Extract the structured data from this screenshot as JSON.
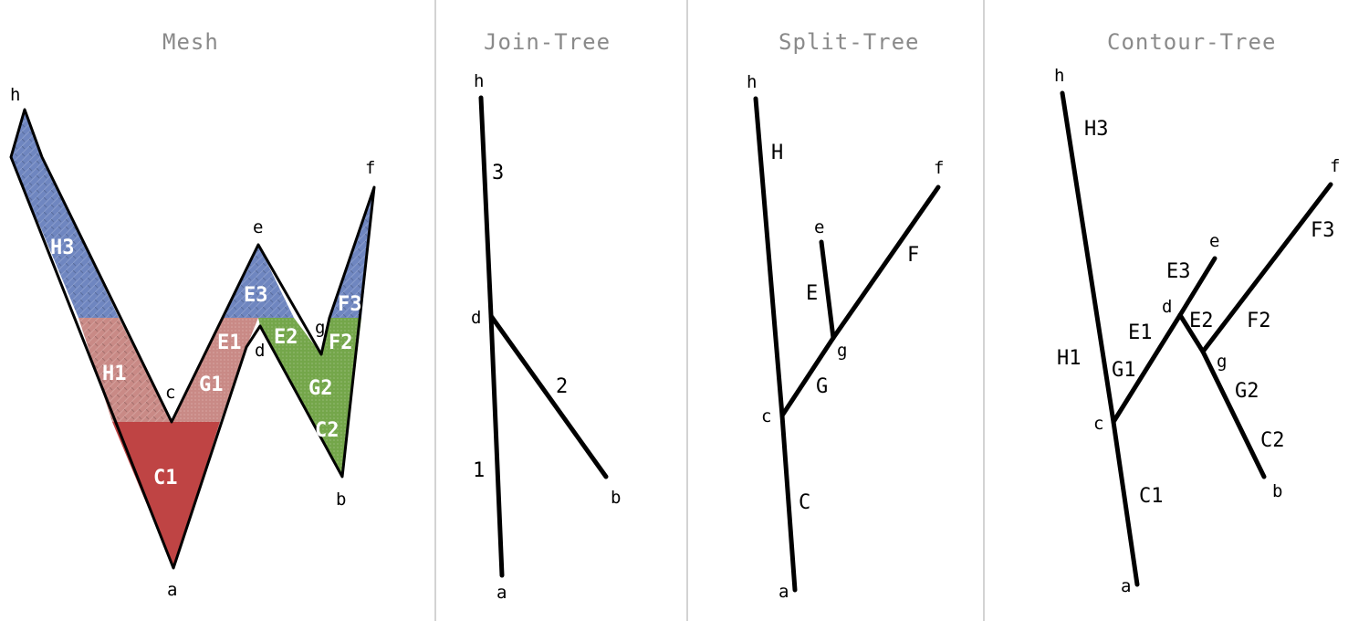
{
  "colors": {
    "region_blue": "#6f86c0",
    "region_pink": "#c98a86",
    "region_red": "#bf4444",
    "region_green": "#74a64a",
    "edge": "#000000",
    "divider": "#d3d3d3",
    "title": "#8a8a8a"
  },
  "panels": {
    "mesh": {
      "title": "Mesh",
      "vertices": {
        "h": "h",
        "c": "c",
        "e": "e",
        "d": "d",
        "g": "g",
        "f": "f",
        "a": "a",
        "b": "b"
      },
      "regions": {
        "H3": "H3",
        "H1": "H1",
        "C1": "C1",
        "G1": "G1",
        "E1": "E1",
        "E3": "E3",
        "E2": "E2",
        "F3": "F3",
        "F2": "F2",
        "G2": "G2",
        "C2": "C2"
      }
    },
    "join_tree": {
      "title": "Join-Tree",
      "vertices": {
        "h": "h",
        "d": "d",
        "a": "a",
        "b": "b"
      },
      "edges": {
        "e1": "1",
        "e2": "2",
        "e3": "3"
      }
    },
    "split_tree": {
      "title": "Split-Tree",
      "vertices": {
        "h": "h",
        "e": "e",
        "g": "g",
        "f": "f",
        "c": "c",
        "a": "a"
      },
      "edges": {
        "H": "H",
        "E": "E",
        "F": "F",
        "G": "G",
        "C": "C"
      }
    },
    "contour_tree": {
      "title": "Contour-Tree",
      "vertices": {
        "h": "h",
        "e": "e",
        "f": "f",
        "d": "d",
        "g": "g",
        "c": "c",
        "a": "a",
        "b": "b"
      },
      "edges": {
        "H3": "H3",
        "H1": "H1",
        "E3": "E3",
        "E1": "E1",
        "E2": "E2",
        "G1": "G1",
        "F3": "F3",
        "F2": "F2",
        "G2": "G2",
        "C2": "C2",
        "C1": "C1"
      }
    }
  }
}
